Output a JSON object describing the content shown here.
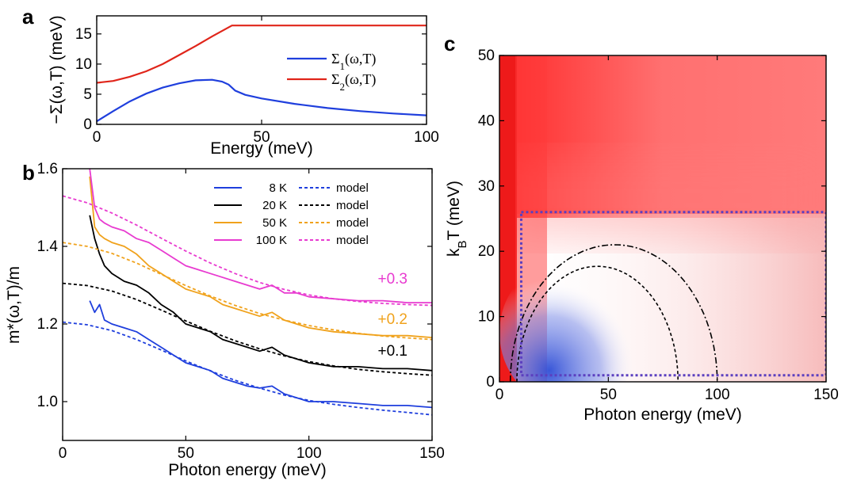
{
  "panel_letters": {
    "a": "a",
    "b": "b",
    "c": "c"
  },
  "chart_data": [
    {
      "panel": "a",
      "type": "line",
      "xlabel": "Energy (meV)",
      "ylabel": "−Σ(ω,T) (meV)",
      "xlim": [
        0,
        100
      ],
      "ylim": [
        0,
        18
      ],
      "xticks": [
        0,
        50,
        100
      ],
      "yticks": [
        0,
        5,
        10,
        15
      ],
      "legend_position": "right",
      "series": [
        {
          "name": "Σ",
          "subscript": "1",
          "name_suffix": "(ω,T)",
          "color": "#1f3fdd",
          "x": [
            0,
            5,
            10,
            15,
            20,
            25,
            30,
            35,
            38,
            40,
            42,
            45,
            50,
            60,
            70,
            80,
            90,
            100
          ],
          "y": [
            0.5,
            2.2,
            3.8,
            5.1,
            6.1,
            6.8,
            7.3,
            7.4,
            7.1,
            6.6,
            5.6,
            4.9,
            4.3,
            3.4,
            2.7,
            2.2,
            1.8,
            1.5
          ]
        },
        {
          "name": "Σ",
          "subscript": "2",
          "name_suffix": "(ω,T)",
          "color": "#e0251a",
          "x": [
            0,
            5,
            10,
            15,
            20,
            25,
            30,
            35,
            41,
            50,
            60,
            70,
            80,
            90,
            100
          ],
          "y": [
            6.9,
            7.2,
            7.9,
            8.8,
            10.0,
            11.5,
            13.0,
            14.6,
            16.4,
            16.4,
            16.4,
            16.4,
            16.4,
            16.4,
            16.4
          ]
        }
      ]
    },
    {
      "panel": "b",
      "type": "line",
      "xlabel": "Photon energy (meV)",
      "ylabel": "m*(ω,T)/m",
      "xlim": [
        0,
        150
      ],
      "ylim": [
        0.9,
        1.6
      ],
      "xticks": [
        0,
        50,
        100,
        150
      ],
      "yticks": [
        1.0,
        1.2,
        1.4,
        1.6
      ],
      "legend_position": "top-right",
      "series": [
        {
          "name": "8 K",
          "color": "#1f3fdd",
          "offset": "",
          "model_label": "model",
          "model": {
            "x": [
              0,
              10,
              20,
              30,
              40,
              50,
              60,
              70,
              80,
              90,
              100,
              110,
              120,
              130,
              140,
              150
            ],
            "y": [
              1.205,
              1.198,
              1.183,
              1.16,
              1.133,
              1.105,
              1.079,
              1.055,
              1.035,
              1.017,
              1.003,
              0.993,
              0.985,
              0.978,
              0.972,
              0.966
            ]
          },
          "data": {
            "x": [
              11,
              13,
              15,
              17,
              20,
              25,
              30,
              35,
              40,
              45,
              50,
              55,
              60,
              65,
              70,
              75,
              80,
              85,
              90,
              95,
              100,
              110,
              120,
              130,
              140,
              150
            ],
            "y": [
              1.26,
              1.23,
              1.25,
              1.21,
              1.2,
              1.19,
              1.18,
              1.16,
              1.14,
              1.12,
              1.1,
              1.09,
              1.08,
              1.06,
              1.05,
              1.04,
              1.035,
              1.04,
              1.02,
              1.01,
              1.0,
              1.0,
              0.995,
              0.99,
              0.99,
              0.985
            ]
          }
        },
        {
          "name": "20 K",
          "color": "#000000",
          "offset": "+0.1",
          "model_label": "model",
          "model": {
            "x": [
              0,
              10,
              20,
              30,
              40,
              50,
              60,
              70,
              80,
              90,
              100,
              110,
              120,
              130,
              140,
              150
            ],
            "y": [
              1.305,
              1.299,
              1.285,
              1.263,
              1.236,
              1.208,
              1.181,
              1.157,
              1.136,
              1.118,
              1.103,
              1.092,
              1.083,
              1.077,
              1.072,
              1.068
            ]
          },
          "data": {
            "x": [
              11,
              13,
              15,
              17,
              20,
              25,
              30,
              35,
              40,
              45,
              50,
              55,
              60,
              65,
              70,
              75,
              80,
              85,
              90,
              95,
              100,
              110,
              120,
              130,
              140,
              150
            ],
            "y": [
              1.48,
              1.42,
              1.38,
              1.35,
              1.33,
              1.31,
              1.3,
              1.28,
              1.25,
              1.23,
              1.2,
              1.19,
              1.18,
              1.16,
              1.15,
              1.14,
              1.13,
              1.14,
              1.12,
              1.11,
              1.1,
              1.09,
              1.09,
              1.085,
              1.085,
              1.08
            ]
          }
        },
        {
          "name": "50 K",
          "color": "#f0a21c",
          "offset": "+0.2",
          "model_label": "model",
          "model": {
            "x": [
              0,
              10,
              20,
              30,
              40,
              50,
              60,
              70,
              80,
              90,
              100,
              110,
              120,
              130,
              140,
              150
            ],
            "y": [
              1.41,
              1.4,
              1.382,
              1.357,
              1.328,
              1.299,
              1.272,
              1.248,
              1.227,
              1.21,
              1.196,
              1.185,
              1.176,
              1.169,
              1.164,
              1.16
            ]
          },
          "data": {
            "x": [
              11,
              13,
              15,
              17,
              20,
              25,
              30,
              35,
              40,
              45,
              50,
              55,
              60,
              65,
              70,
              75,
              80,
              85,
              90,
              95,
              100,
              110,
              120,
              130,
              140,
              150
            ],
            "y": [
              1.58,
              1.45,
              1.43,
              1.42,
              1.41,
              1.4,
              1.38,
              1.35,
              1.33,
              1.31,
              1.29,
              1.28,
              1.27,
              1.25,
              1.24,
              1.23,
              1.22,
              1.23,
              1.21,
              1.2,
              1.19,
              1.18,
              1.175,
              1.17,
              1.17,
              1.165
            ]
          }
        },
        {
          "name": "100 K",
          "color": "#e83bd0",
          "offset": "+0.3",
          "model_label": "model",
          "model": {
            "x": [
              0,
              10,
              20,
              30,
              40,
              50,
              60,
              70,
              80,
              90,
              100,
              110,
              120,
              130,
              140,
              150
            ],
            "y": [
              1.53,
              1.512,
              1.486,
              1.455,
              1.421,
              1.388,
              1.357,
              1.33,
              1.307,
              1.289,
              1.275,
              1.265,
              1.258,
              1.253,
              1.25,
              1.248
            ]
          },
          "data": {
            "x": [
              11,
              13,
              15,
              17,
              20,
              25,
              30,
              35,
              40,
              45,
              50,
              55,
              60,
              65,
              70,
              75,
              80,
              85,
              90,
              95,
              100,
              110,
              120,
              130,
              140,
              150
            ],
            "y": [
              1.6,
              1.5,
              1.47,
              1.46,
              1.45,
              1.44,
              1.42,
              1.41,
              1.39,
              1.37,
              1.35,
              1.34,
              1.33,
              1.32,
              1.31,
              1.3,
              1.29,
              1.3,
              1.28,
              1.28,
              1.27,
              1.265,
              1.26,
              1.26,
              1.255,
              1.255
            ]
          }
        }
      ]
    },
    {
      "panel": "c",
      "type": "heatmap",
      "xlabel": "Photon energy (meV)",
      "ylabel_main": "k",
      "ylabel_sub": "B",
      "ylabel_suffix": "T (meV)",
      "xlim": [
        0,
        150
      ],
      "ylim": [
        0,
        50
      ],
      "xticks": [
        0,
        50,
        100,
        150
      ],
      "yticks": [
        0,
        10,
        20,
        30,
        40,
        50
      ],
      "colors": {
        "positive": "#ff5a5a",
        "zero": "#ffffff",
        "negative": "#3b57d8"
      },
      "box": {
        "x": [
          10,
          150
        ],
        "y": [
          1,
          26
        ],
        "color": "#5b3fbf"
      },
      "contours": [
        {
          "style": "dashed",
          "x_range": [
            8,
            82
          ],
          "center_x": 45,
          "peak_y": 17.7
        },
        {
          "style": "dash-dot",
          "x_range": [
            5,
            100
          ],
          "center_x": 53,
          "peak_y": 21
        }
      ]
    }
  ]
}
